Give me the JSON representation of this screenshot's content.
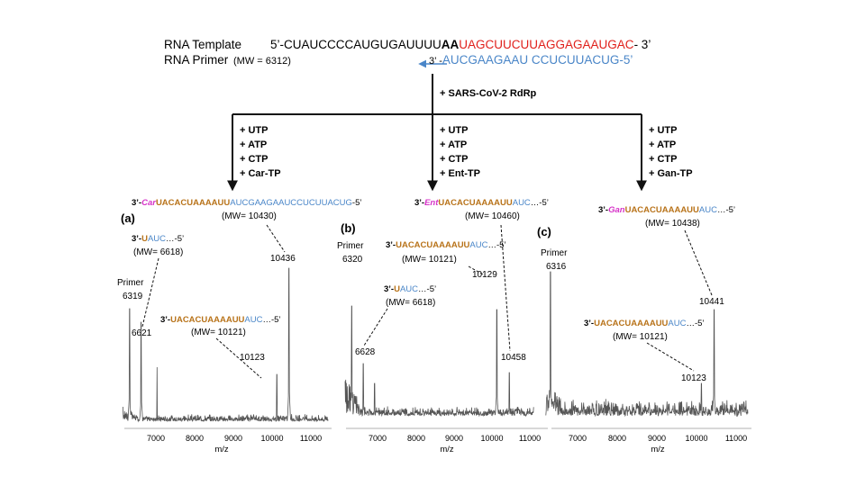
{
  "header": {
    "template_label": "RNA Template",
    "template_prefix": "5’-",
    "template_black": "CUAUCCCCAUGUGAUUUU",
    "template_bold": "AA",
    "template_red": "UAGCUUCUUAGGAGAAUGAC",
    "template_suffix": "- 3’",
    "primer_label": "RNA Primer",
    "primer_mw": "(MW = 6312)",
    "primer_prefix": "3’ -",
    "primer_blue": "AUCGAAGAAU CCUCUUACUG",
    "primer_suffix": "-5’",
    "enzyme_label": "+ SARS-CoV-2 RdRp"
  },
  "colors": {
    "red": "#e0201b",
    "blue": "#4a86c8",
    "orange": "#b8731a",
    "magenta": "#d633c8",
    "arrow_blue": "#4a86c8",
    "spectrum": "#555555"
  },
  "branches": [
    {
      "reagents": [
        "+ UTP",
        "+ ATP",
        "+ CTP",
        "+ Car-TP"
      ]
    },
    {
      "reagents": [
        "+ UTP",
        "+ ATP",
        "+ CTP",
        "+ Ent-TP"
      ]
    },
    {
      "reagents": [
        "+ UTP",
        "+ ATP",
        "+ CTP",
        "+ Gan-TP"
      ]
    }
  ],
  "panels": [
    {
      "letter": "(a)",
      "product": {
        "p": "3’-",
        "mod": "Car",
        "orange": "UACACUAAAAUU",
        "blue": "AUCGAAGAAUCCUCUUACUG",
        "s": "-5’",
        "mw": "(MW= 10430)"
      },
      "ann1": {
        "p": "3’-",
        "orange": "U",
        "blue": "AUC",
        "s": "…-5’",
        "mw": "(MW= 6618)"
      },
      "ann2": {
        "p": "3’-",
        "orange": "UACACUAAAAUU",
        "blue": "AUC",
        "s": "…-5’",
        "mw": "(MW= 10121)"
      },
      "primer_label": "Primer",
      "peaks": {
        "primer": "6319",
        "p1": "6621",
        "p2": "10123",
        "p3": "10436"
      },
      "x_ticks": [
        "7000",
        "8000",
        "9000",
        "10000",
        "11000"
      ],
      "xlabel": "m/z"
    },
    {
      "letter": "(b)",
      "product": {
        "p": "3’-",
        "mod": "Ent",
        "orange": "UACACUAAAAUU",
        "blue": "AUC",
        "s": "…-5’",
        "mw": "(MW= 10460)"
      },
      "ann1": {
        "p": "3’-",
        "orange": "U",
        "blue": "AUC",
        "s": "…-5’",
        "mw": "(MW= 6618)"
      },
      "ann2": {
        "p": "3’-",
        "orange": "UACACUAAAAUU",
        "blue": "AUC",
        "s": "…-5’",
        "mw": "(MW= 10121)"
      },
      "primer_label": "Primer",
      "peaks": {
        "primer": "6320",
        "p1": "6628",
        "p2": "10129",
        "p3": "10458"
      },
      "x_ticks": [
        "7000",
        "8000",
        "9000",
        "10000",
        "11000"
      ],
      "xlabel": "m/z"
    },
    {
      "letter": "(c)",
      "product": {
        "p": "3’-",
        "mod": "Gan",
        "orange": "UACACUAAAAUU",
        "blue": "AUC",
        "s": "…-5’",
        "mw": "(MW= 10438)"
      },
      "ann2": {
        "p": "3’-",
        "orange": "UACACUAAAAUU",
        "blue": "AUC",
        "s": "…-5’",
        "mw": "(MW= 10121)"
      },
      "primer_label": "Primer",
      "peaks": {
        "primer": "6316",
        "p2": "10123",
        "p3": "10441"
      },
      "x_ticks": [
        "7000",
        "8000",
        "9000",
        "10000",
        "11000"
      ],
      "xlabel": "m/z"
    }
  ]
}
